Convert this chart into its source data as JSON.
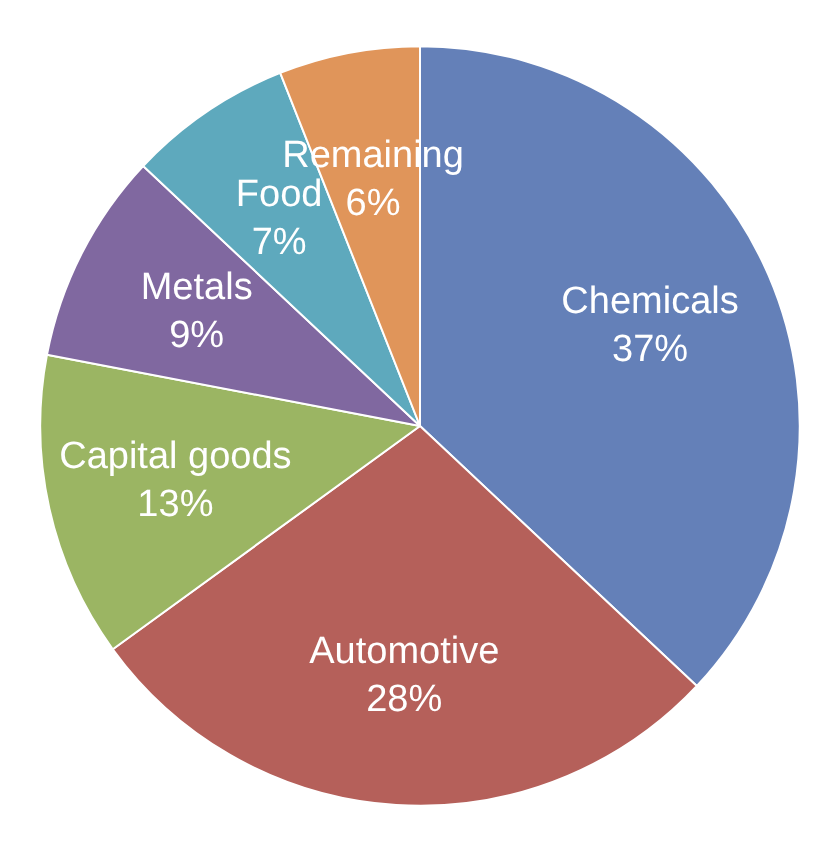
{
  "chart_data": {
    "type": "pie",
    "categories": [
      "Chemicals",
      "Automotive",
      "Capital goods",
      "Metals",
      "Food",
      "Remaining"
    ],
    "values": [
      37,
      28,
      13,
      9,
      7,
      6
    ],
    "colors": [
      "#6480b8",
      "#b5605a",
      "#9bb563",
      "#8068a0",
      "#5ea9bd",
      "#e0955a"
    ],
    "value_labels": [
      "37%",
      "28%",
      "13%",
      "9%",
      "7%",
      "6%"
    ],
    "legend": false
  }
}
